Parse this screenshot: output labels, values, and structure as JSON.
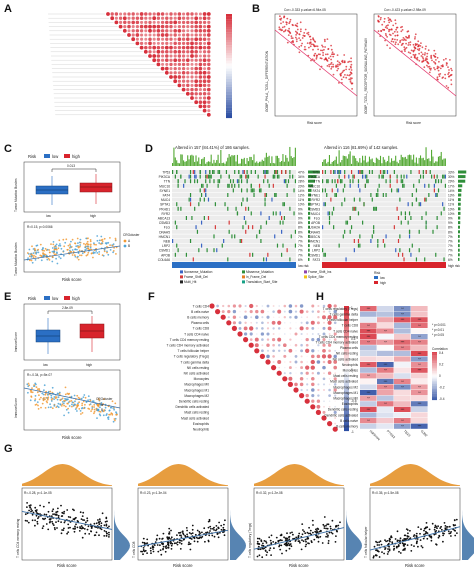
{
  "panels": {
    "A": {
      "letter": "A"
    },
    "B": {
      "letter": "B",
      "left_stat": "Cor=-0.333 p-value=6.94e-05",
      "right_stat": "Cor=-0.423 p-value=2.98e-09",
      "left_ylabel": "GOBP_PHLA_TCELL_DIFFERENTIATION",
      "right_ylabel": "GOBP_TCELL_RECEPTOR_SIGNALING_PATHWAY",
      "xlabel": "Risk score"
    },
    "C": {
      "letter": "C",
      "legend_title": "Risk",
      "legend_low": "low",
      "legend_high": "high",
      "pvalue": "0.013",
      "ylabel_top": "Tumor Mutation Burden",
      "groups": [
        "low",
        "high"
      ],
      "stat": "R=0.15, p=0.0066",
      "ylabel_bottom": "Tumor Mutation Burden",
      "xlabel": "Risk score",
      "cluster_legend_title": "CRGcluster",
      "cluster_a": "A",
      "cluster_b": "B"
    },
    "D": {
      "letter": "D",
      "left_title": "Altered in 157 (84.41%) of 186 samples.",
      "right_title": "Altered in 116 (81.69%) of 142 samples.",
      "left_genes": [
        "TP53",
        "PIK3CA",
        "TTN",
        "MUC16",
        "SYNE1",
        "FAT4",
        "MUC4",
        "SPTA1",
        "PKHD1",
        "RYR2",
        "ABCA13",
        "CSMD3",
        "FLG",
        "DNAH5",
        "HMCN1",
        "NEB",
        "LRP2",
        "CSMD1",
        "APOB",
        "COL6A6"
      ],
      "right_genes": [
        "TP53",
        "PIK3CA",
        "TTN",
        "MUC16",
        "FAT4",
        "SYNE1",
        "RYR2",
        "SPTA1",
        "CSMD3",
        "MUC4",
        "FLG",
        "APOB",
        "USH2A",
        "DNAH5",
        "OBSCN",
        "HMCN1",
        "NEB",
        "LRP2",
        "CSMD1",
        "FAT3"
      ],
      "left_pcts": [
        "47%",
        "34%",
        "28%",
        "20%",
        "14%",
        "12%",
        "11%",
        "10%",
        "9%",
        "9%",
        "9%",
        "8%",
        "8%",
        "8%",
        "7%",
        "7%",
        "7%",
        "7%",
        "7%",
        "6%"
      ],
      "right_pcts": [
        "33%",
        "30%",
        "29%",
        "17%",
        "14%",
        "13%",
        "11%",
        "11%",
        "10%",
        "10%",
        "9%",
        "9%",
        "8%",
        "8%",
        "7%",
        "7%",
        "7%",
        "7%",
        "7%",
        "6%"
      ],
      "legend_items": [
        "Nonsense_Mutation",
        "Missense_Mutation",
        "Frame_Shift_Ins",
        "Frame_Shift_Del",
        "In_Frame_Del",
        "Splice_Site",
        "Multi_Hit",
        "Translation_Start_Site"
      ],
      "risk_title": "Risk",
      "risk_low": "low",
      "risk_high": "high",
      "left_bar_label": "low risk",
      "right_bar_label": "high risk"
    },
    "E": {
      "letter": "E",
      "legend_title": "Risk",
      "legend_low": "low",
      "legend_high": "high",
      "pvalue": "2.8e-09",
      "ylabel_top": "ImmuneScore",
      "groups": [
        "low",
        "high"
      ],
      "stat": "R=-0.34, p=5e-07",
      "ylabel_bottom": "ImmuneScore",
      "xlabel": "Risk score",
      "cluster_legend_title": "CRGcluster",
      "cluster_a": "A",
      "cluster_b": "B"
    },
    "F": {
      "letter": "F",
      "rows": [
        "T cells CD4",
        "B cells naive",
        "B cells memory",
        "Plasma cells",
        "T cells CD8",
        "T cells CD4 naive",
        "T cells CD4 memory resting",
        "T cells CD4 memory activated",
        "T cells follicular helper",
        "T cells regulatory (Tregs)",
        "T cells gamma delta",
        "NK cells resting",
        "NK cells activated",
        "Monocytes",
        "Macrophages M0",
        "Macrophages M1",
        "Macrophages M2",
        "Dendritic cells resting",
        "Dendritic cells activated",
        "Mast cells resting",
        "Mast cells activated",
        "Eosinophils",
        "Neutrophils"
      ],
      "scale_ticks": [
        "1",
        "0.5",
        "0",
        "-0.5",
        "-1"
      ]
    },
    "G": {
      "letter": "G",
      "plots": [
        {
          "stat": "R=-0.28, p=1.1e-05",
          "ylabel": "T cells CD4 memory resting",
          "xlabel": "Risk score"
        },
        {
          "stat": "R=0.23, p=1.3e-04",
          "ylabel": "T cells CD8",
          "xlabel": "Risk score"
        },
        {
          "stat": "R=0.32, p=1.2e-08",
          "ylabel": "T cells regulatory (Tregs)",
          "xlabel": "Risk score"
        },
        {
          "stat": "R=0.35, p=1.5e-08",
          "ylabel": "T cells follicular helper",
          "xlabel": "Risk score"
        }
      ]
    },
    "H": {
      "letter": "H",
      "rows": [
        "T cells regulatory (Tregs)",
        "T cells gamma delta",
        "T cells follicular helper",
        "T cells CD8",
        "T cells CD4 naive",
        "T cells CD4 memory resting",
        "T cells CD4 memory activated",
        "Plasma cells",
        "NK cells resting",
        "NK cells activated",
        "Neutrophils",
        "Monocytes",
        "Mast cells resting",
        "Mast cells activated",
        "Macrophages M2",
        "Macrophages M1",
        "Macrophages M0",
        "Eosinophils",
        "Dendritic cells resting",
        "Dendritic cells activated",
        "B cells naive",
        "B cells memory"
      ],
      "cols": [
        "riskScore",
        "PTGS2",
        "TBX3",
        "GJB2"
      ],
      "legend_title": "Correlation",
      "legend_ticks": [
        "0.4",
        "0.2",
        "0",
        "-0.2",
        "-0.4"
      ],
      "sig_title": "",
      "sig_items": [
        "p<0.001",
        "p<0.01",
        "p<0.05"
      ]
    }
  },
  "colors": {
    "low": "#2b6fc4",
    "high": "#d8242c",
    "clusterA": "#f19a35",
    "clusterB": "#4da3d6",
    "corr_pos": "#d7303c",
    "corr_neg": "#2c4ea3",
    "density": "#e38c1d",
    "ridge": "#3a6ea5"
  }
}
